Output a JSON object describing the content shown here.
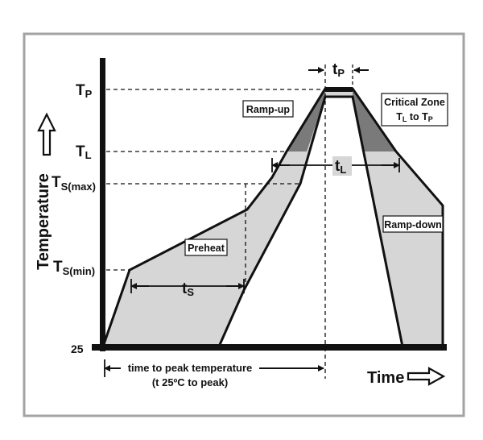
{
  "diagram": {
    "y_axis_label": "Temperature",
    "x_axis_label": "Time",
    "levels": {
      "tp": {
        "base": "T",
        "sub": "P"
      },
      "tl": {
        "base": "T",
        "sub": "L"
      },
      "ts_max": {
        "base": "T",
        "sub": "S(max)"
      },
      "ts_min": {
        "base": "T",
        "sub": "S(min)"
      },
      "ambient": "25"
    },
    "regions": {
      "ramp_up": "Ramp-up",
      "preheat": "Preheat",
      "ramp_down": "Ramp-down",
      "critical_zone_line1": "Critical Zone",
      "critical_zone_line2": {
        "a": "T",
        "a_sub": "L",
        "mid": " to T",
        "b_sub": "P"
      }
    },
    "intervals": {
      "tp": {
        "base": "t",
        "sub": "P"
      },
      "tl": {
        "base": "t",
        "sub": "L"
      },
      "ts": {
        "base": "t",
        "sub": "S"
      }
    },
    "time_to_peak_line1": "time to peak temperature",
    "time_to_peak_line2": "(t 25ºC to peak)",
    "colors": {
      "frame": "#a3a3a3",
      "band_fill": "#d6d6d6",
      "critical_fill": "#7a7a7a",
      "ink": "#111111"
    }
  }
}
